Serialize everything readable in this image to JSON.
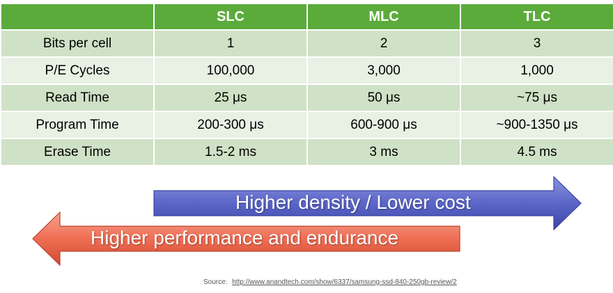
{
  "table": {
    "headers": [
      "",
      "SLC",
      "MLC",
      "TLC"
    ],
    "rows": [
      {
        "label": "Bits per cell",
        "slc": "1",
        "mlc": "2",
        "tlc": "3"
      },
      {
        "label": "P/E Cycles",
        "slc": "100,000",
        "mlc": "3,000",
        "tlc": "1,000"
      },
      {
        "label": "Read Time",
        "slc": "25 μs",
        "mlc": "50 μs",
        "tlc": "~75 μs"
      },
      {
        "label": "Program Time",
        "slc": "200-300 μs",
        "mlc": "600-900 μs",
        "tlc": "~900-1350 μs"
      },
      {
        "label": "Erase Time",
        "slc": "1.5-2 ms",
        "mlc": "3 ms",
        "tlc": "4.5 ms"
      }
    ]
  },
  "arrows": {
    "right": {
      "label": "Higher density / Lower cost",
      "color": "#5b66c8"
    },
    "left": {
      "label": "Higher performance and endurance",
      "color": "#ef6e54"
    }
  },
  "source": {
    "prefix": "Source:",
    "url": "http://www.anandtech.com/show/6337/samsung-ssd-840-250gb-review/2"
  },
  "colors": {
    "header_green": "#5bab3b",
    "row_dark": "#cfe1c6",
    "row_light": "#e8f1e4"
  }
}
